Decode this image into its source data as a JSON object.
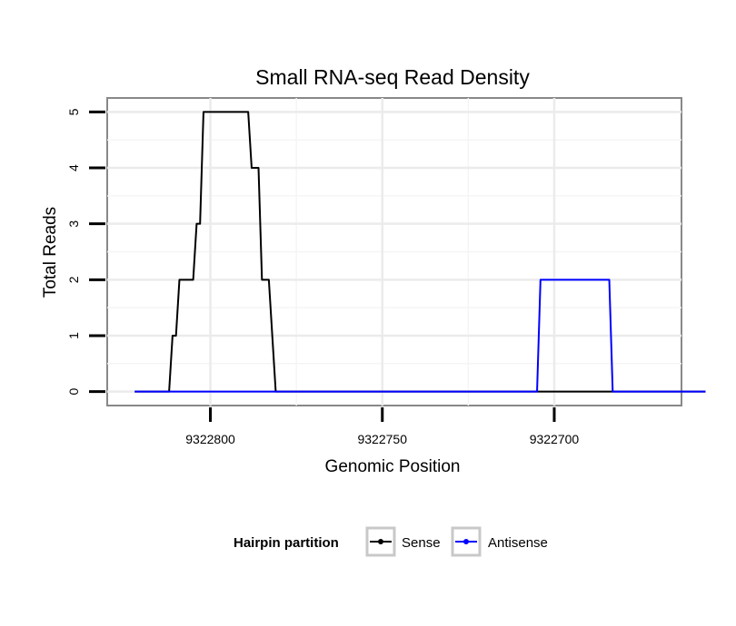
{
  "chart_data": {
    "type": "line",
    "title": "Small RNA-seq Read Density",
    "xlabel": "Genomic Position",
    "ylabel": "Total Reads",
    "x_reversed": true,
    "xlim": [
      9322830,
      9322663
    ],
    "ylim": [
      -0.25,
      5.25
    ],
    "x_ticks": [
      9322800,
      9322750,
      9322700
    ],
    "x_tick_labels": [
      "9322800",
      "9322750",
      "9322700"
    ],
    "y_ticks": [
      0,
      1,
      2,
      3,
      4,
      5
    ],
    "y_tick_labels": [
      "0",
      "1",
      "2",
      "3",
      "4",
      "5"
    ],
    "grid": true,
    "legend": {
      "title": "Hairpin partition",
      "position": "bottom"
    },
    "series": [
      {
        "name": "Sense",
        "color": "#000000",
        "points": [
          [
            9322822,
            0
          ],
          [
            9322812,
            0
          ],
          [
            9322811,
            1
          ],
          [
            9322810,
            1
          ],
          [
            9322809,
            2
          ],
          [
            9322805,
            2
          ],
          [
            9322804,
            3
          ],
          [
            9322803,
            3
          ],
          [
            9322802,
            5
          ],
          [
            9322789,
            5
          ],
          [
            9322788,
            4
          ],
          [
            9322786,
            4
          ],
          [
            9322785,
            2
          ],
          [
            9322783,
            2
          ],
          [
            9322781,
            0
          ],
          [
            9322656,
            0
          ]
        ]
      },
      {
        "name": "Antisense",
        "color": "#0000ff",
        "points": [
          [
            9322822,
            0
          ],
          [
            9322781,
            0
          ],
          [
            9322780,
            0
          ],
          [
            9322705,
            0
          ],
          [
            9322704,
            2
          ],
          [
            9322684,
            2
          ],
          [
            9322683,
            0
          ],
          [
            9322656,
            0
          ]
        ]
      }
    ]
  }
}
